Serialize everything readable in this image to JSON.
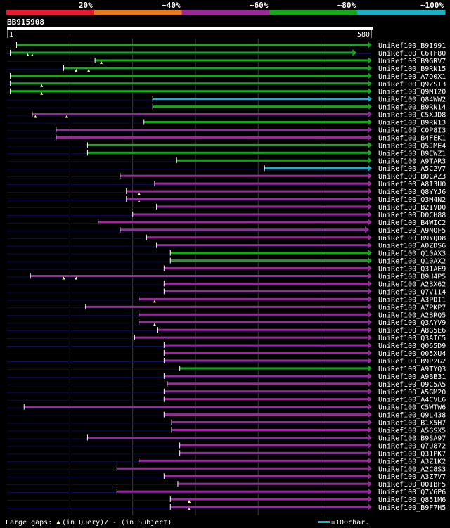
{
  "header": {
    "query_id": "BB915908",
    "ruler_start": "1",
    "ruler_end": "580",
    "query_length": 580
  },
  "legend_bar": [
    {
      "label": "20%",
      "color": "#e8192c"
    },
    {
      "label": "~40%",
      "color": "#e6781e"
    },
    {
      "label": "~60%",
      "color": "#9a2a9a"
    },
    {
      "label": "~80%",
      "color": "#17a51a"
    },
    {
      "label": "~100%",
      "color": "#1bb0c4"
    }
  ],
  "colors": {
    "background": "#000000",
    "ruler": "#ffffff",
    "text": "#ffffff",
    "grid": "#3a3a3a",
    "insert_marker": "#ffff99",
    "line_under": "#0a0a55"
  },
  "footer": {
    "gaps_label": "Large gaps:",
    "query_gap_text": "(in Query)/",
    "subject_gap_text": "- (in Subject)",
    "scale_label": "=100char."
  },
  "chart_data": {
    "type": "alignment-map",
    "x_range": [
      1,
      580
    ],
    "grid_positions": [
      100,
      200,
      300,
      400,
      500
    ],
    "hits": [
      {
        "id": "UniRef100_B9I991",
        "start": 15,
        "end": 582,
        "tier": "~80%",
        "inserts": []
      },
      {
        "id": "UniRef100_C6TF80",
        "start": 5,
        "end": 550,
        "tier": "~80%",
        "inserts": [
          33,
          40
        ]
      },
      {
        "id": "UniRef100_B9GRV7",
        "start": 140,
        "end": 582,
        "tier": "~80%",
        "inserts": [
          150
        ]
      },
      {
        "id": "UniRef100_B9RN15",
        "start": 90,
        "end": 582,
        "tier": "~80%",
        "inserts": [
          110,
          130
        ]
      },
      {
        "id": "UniRef100_A7Q0X1",
        "start": 5,
        "end": 582,
        "tier": "~80%",
        "inserts": []
      },
      {
        "id": "UniRef100_Q9ZSI3",
        "start": 5,
        "end": 582,
        "tier": "~80%",
        "inserts": [
          55
        ]
      },
      {
        "id": "UniRef100_Q9M120",
        "start": 5,
        "end": 582,
        "tier": "~80%",
        "inserts": [
          55
        ]
      },
      {
        "id": "UniRef100_Q84WW2",
        "start": 232,
        "end": 582,
        "tier": "~100%",
        "inserts": []
      },
      {
        "id": "UniRef100_B9RN14",
        "start": 232,
        "end": 582,
        "tier": "~80%",
        "inserts": []
      },
      {
        "id": "UniRef100_C5XJD8",
        "start": 40,
        "end": 582,
        "tier": "~60%",
        "inserts": [
          45,
          95
        ]
      },
      {
        "id": "UniRef100_B9RN13",
        "start": 218,
        "end": 582,
        "tier": "~80%",
        "inserts": []
      },
      {
        "id": "UniRef100_C0P8I3",
        "start": 78,
        "end": 582,
        "tier": "~60%",
        "inserts": []
      },
      {
        "id": "UniRef100_B4FEK1",
        "start": 78,
        "end": 582,
        "tier": "~60%",
        "inserts": []
      },
      {
        "id": "UniRef100_Q5JME4",
        "start": 128,
        "end": 582,
        "tier": "~80%",
        "inserts": []
      },
      {
        "id": "UniRef100_B9EWZ1",
        "start": 128,
        "end": 582,
        "tier": "~80%",
        "inserts": []
      },
      {
        "id": "UniRef100_A9TAR3",
        "start": 270,
        "end": 582,
        "tier": "~80%",
        "inserts": []
      },
      {
        "id": "UniRef100_A5C2V7",
        "start": 410,
        "end": 582,
        "tier": "~100%",
        "inserts": []
      },
      {
        "id": "UniRef100_B0CAZ3",
        "start": 180,
        "end": 575,
        "tier": "~60%",
        "inserts": []
      },
      {
        "id": "UniRef100_A8I3U0",
        "start": 235,
        "end": 582,
        "tier": "~60%",
        "inserts": []
      },
      {
        "id": "UniRef100_Q8YYJ6",
        "start": 190,
        "end": 582,
        "tier": "~60%",
        "inserts": [
          210
        ]
      },
      {
        "id": "UniRef100_Q3M4N2",
        "start": 190,
        "end": 582,
        "tier": "~60%",
        "inserts": [
          210
        ]
      },
      {
        "id": "UniRef100_B2IVD0",
        "start": 238,
        "end": 582,
        "tier": "~60%",
        "inserts": []
      },
      {
        "id": "UniRef100_D0CH88",
        "start": 200,
        "end": 582,
        "tier": "~60%",
        "inserts": []
      },
      {
        "id": "UniRef100_B4WIC2",
        "start": 145,
        "end": 582,
        "tier": "~60%",
        "inserts": []
      },
      {
        "id": "UniRef100_A9NQF5",
        "start": 180,
        "end": 570,
        "tier": "~60%",
        "inserts": []
      },
      {
        "id": "UniRef100_B9YQD8",
        "start": 222,
        "end": 582,
        "tier": "~60%",
        "inserts": []
      },
      {
        "id": "UniRef100_A0ZDS6",
        "start": 238,
        "end": 582,
        "tier": "~60%",
        "inserts": []
      },
      {
        "id": "UniRef100_Q10AX3",
        "start": 260,
        "end": 582,
        "tier": "~80%",
        "inserts": []
      },
      {
        "id": "UniRef100_Q10AX2",
        "start": 260,
        "end": 582,
        "tier": "~80%",
        "inserts": []
      },
      {
        "id": "UniRef100_Q31AE9",
        "start": 250,
        "end": 582,
        "tier": "~60%",
        "inserts": []
      },
      {
        "id": "UniRef100_B9H4P5",
        "start": 37,
        "end": 582,
        "tier": "~60%",
        "inserts": [
          90,
          110
        ]
      },
      {
        "id": "UniRef100_A2BX62",
        "start": 250,
        "end": 582,
        "tier": "~60%",
        "inserts": []
      },
      {
        "id": "UniRef100_Q7V114",
        "start": 250,
        "end": 582,
        "tier": "~60%",
        "inserts": []
      },
      {
        "id": "UniRef100_A3PDI1",
        "start": 210,
        "end": 582,
        "tier": "~60%",
        "inserts": [
          235
        ]
      },
      {
        "id": "UniRef100_A7PKP7",
        "start": 125,
        "end": 582,
        "tier": "~60%",
        "inserts": []
      },
      {
        "id": "UniRef100_A2BRQ5",
        "start": 210,
        "end": 582,
        "tier": "~60%",
        "inserts": []
      },
      {
        "id": "UniRef100_Q3AYV9",
        "start": 210,
        "end": 582,
        "tier": "~60%",
        "inserts": [
          235
        ]
      },
      {
        "id": "UniRef100_A8G5E6",
        "start": 240,
        "end": 582,
        "tier": "~60%",
        "inserts": []
      },
      {
        "id": "UniRef100_Q3AIC5",
        "start": 203,
        "end": 582,
        "tier": "~60%",
        "inserts": []
      },
      {
        "id": "UniRef100_Q065D9",
        "start": 250,
        "end": 582,
        "tier": "~60%",
        "inserts": []
      },
      {
        "id": "UniRef100_Q05XU4",
        "start": 250,
        "end": 582,
        "tier": "~60%",
        "inserts": []
      },
      {
        "id": "UniRef100_B9P2G2",
        "start": 250,
        "end": 582,
        "tier": "~60%",
        "inserts": []
      },
      {
        "id": "UniRef100_A9TYQ3",
        "start": 275,
        "end": 582,
        "tier": "~80%",
        "inserts": []
      },
      {
        "id": "UniRef100_A9BB31",
        "start": 250,
        "end": 582,
        "tier": "~60%",
        "inserts": []
      },
      {
        "id": "UniRef100_Q9C5A5",
        "start": 255,
        "end": 582,
        "tier": "~60%",
        "inserts": []
      },
      {
        "id": "UniRef100_A5GM20",
        "start": 250,
        "end": 582,
        "tier": "~60%",
        "inserts": []
      },
      {
        "id": "UniRef100_A4CVL6",
        "start": 250,
        "end": 582,
        "tier": "~60%",
        "inserts": []
      },
      {
        "id": "UniRef100_C5WTW6",
        "start": 27,
        "end": 582,
        "tier": "~60%",
        "inserts": []
      },
      {
        "id": "UniRef100_Q9L438",
        "start": 250,
        "end": 582,
        "tier": "~60%",
        "inserts": []
      },
      {
        "id": "UniRef100_B1X5H7",
        "start": 262,
        "end": 582,
        "tier": "~60%",
        "inserts": []
      },
      {
        "id": "UniRef100_A5GSX5",
        "start": 262,
        "end": 582,
        "tier": "~60%",
        "inserts": []
      },
      {
        "id": "UniRef100_B9SA97",
        "start": 128,
        "end": 582,
        "tier": "~60%",
        "inserts": []
      },
      {
        "id": "UniRef100_Q7U872",
        "start": 275,
        "end": 582,
        "tier": "~60%",
        "inserts": []
      },
      {
        "id": "UniRef100_Q31PK7",
        "start": 275,
        "end": 582,
        "tier": "~60%",
        "inserts": []
      },
      {
        "id": "UniRef100_A3Z1K2",
        "start": 210,
        "end": 582,
        "tier": "~60%",
        "inserts": []
      },
      {
        "id": "UniRef100_A2C8S3",
        "start": 175,
        "end": 582,
        "tier": "~60%",
        "inserts": []
      },
      {
        "id": "UniRef100_A3Z7V7",
        "start": 250,
        "end": 582,
        "tier": "~60%",
        "inserts": []
      },
      {
        "id": "UniRef100_Q0IBF5",
        "start": 272,
        "end": 582,
        "tier": "~60%",
        "inserts": []
      },
      {
        "id": "UniRef100_Q7V6P6",
        "start": 175,
        "end": 582,
        "tier": "~60%",
        "inserts": []
      },
      {
        "id": "UniRef100_Q851M6",
        "start": 260,
        "end": 582,
        "tier": "~60%",
        "inserts": [
          290
        ]
      },
      {
        "id": "UniRef100_B9F7H5",
        "start": 260,
        "end": 582,
        "tier": "~60%",
        "inserts": [
          290
        ]
      }
    ]
  }
}
